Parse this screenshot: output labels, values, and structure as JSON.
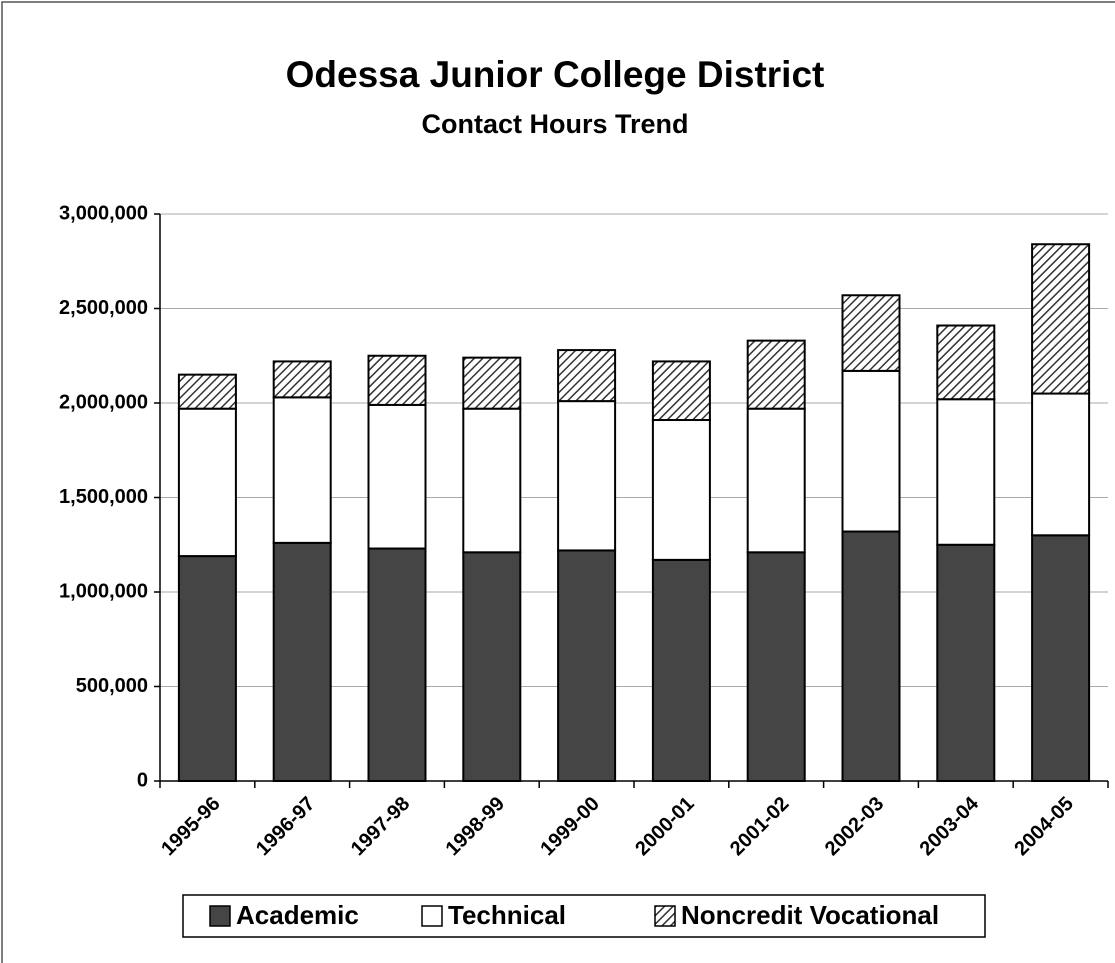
{
  "chart_data": {
    "type": "stacked_bar",
    "title": "Odessa Junior College District",
    "subtitle": "Contact Hours Trend",
    "categories": [
      "1995-96",
      "1996-97",
      "1997-98",
      "1998-99",
      "1999-00",
      "2000-01",
      "2001-02",
      "2002-03",
      "2003-04",
      "2004-05"
    ],
    "series": [
      {
        "name": "Academic",
        "color": "#454545",
        "values": [
          1190000,
          1260000,
          1230000,
          1210000,
          1220000,
          1170000,
          1210000,
          1320000,
          1250000,
          1300000
        ]
      },
      {
        "name": "Technical",
        "color": "#ffffff",
        "values": [
          780000,
          770000,
          760000,
          760000,
          790000,
          740000,
          760000,
          850000,
          770000,
          750000
        ]
      },
      {
        "name": "Noncredit Vocational",
        "color": "#ffffff",
        "pattern": "diagonal-hatch",
        "values": [
          180000,
          190000,
          260000,
          270000,
          270000,
          310000,
          360000,
          400000,
          390000,
          790000
        ]
      }
    ],
    "ylim": [
      0,
      3000000
    ],
    "yticks": [
      0,
      {
        "value": 500000,
        "label": "500,000"
      },
      {
        "value": 1000000,
        "label": "1,000,000"
      },
      {
        "value": 1500000,
        "label": "1,500,000"
      },
      {
        "value": 2000000,
        "label": "2,000,000"
      },
      {
        "value": 2500000,
        "label": "2,500,000"
      },
      {
        "value": 3000000,
        "label": "3,000,000"
      }
    ],
    "grid": true,
    "legend": "bottom"
  }
}
